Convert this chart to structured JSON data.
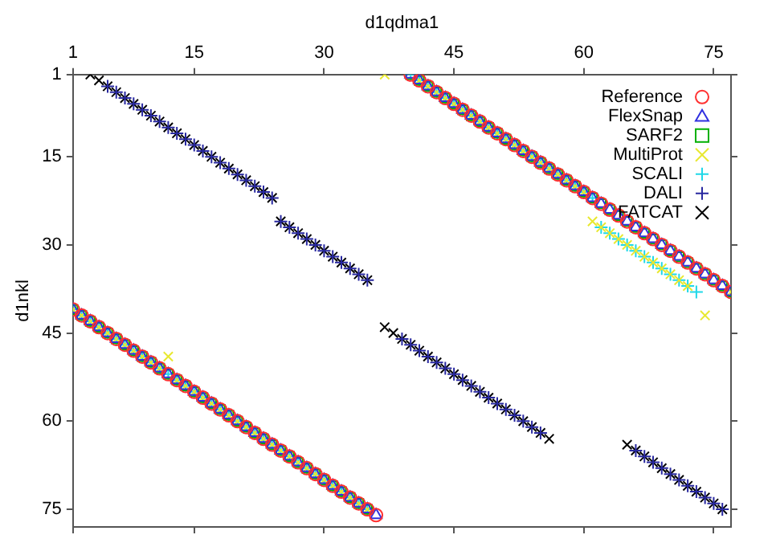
{
  "chart_data": {
    "type": "scatter",
    "xlabel": "d1qdma1",
    "ylabel": "d1nkl",
    "xlim": [
      1,
      77
    ],
    "ylim": [
      78,
      1
    ],
    "xticks": [
      1,
      15,
      30,
      45,
      60,
      75
    ],
    "yticks": [
      1,
      15,
      30,
      45,
      60,
      75
    ],
    "grid": false,
    "legend": "top right",
    "series": [
      {
        "name": "Reference",
        "color": "#ff3030",
        "marker": "circle",
        "x": [
          1,
          2,
          3,
          4,
          5,
          6,
          7,
          8,
          9,
          10,
          11,
          12,
          13,
          14,
          15,
          16,
          17,
          18,
          19,
          20,
          21,
          22,
          23,
          24,
          25,
          26,
          27,
          28,
          29,
          30,
          31,
          32,
          33,
          34,
          35,
          36,
          40,
          41,
          42,
          43,
          44,
          45,
          46,
          47,
          48,
          49,
          50,
          51,
          52,
          53,
          54,
          55,
          56,
          57,
          58,
          59,
          60,
          61,
          62,
          63,
          64,
          65,
          66,
          67,
          68,
          69,
          70,
          71,
          72,
          73,
          74,
          75,
          76,
          77
        ],
        "values": [
          41,
          42,
          43,
          44,
          45,
          46,
          47,
          48,
          49,
          50,
          51,
          52,
          53,
          54,
          55,
          56,
          57,
          58,
          59,
          60,
          61,
          62,
          63,
          64,
          65,
          66,
          67,
          68,
          69,
          70,
          71,
          72,
          73,
          74,
          75,
          76,
          1,
          2,
          3,
          4,
          5,
          6,
          7,
          8,
          9,
          10,
          11,
          12,
          13,
          14,
          15,
          16,
          17,
          18,
          19,
          20,
          21,
          22,
          23,
          24,
          25,
          26,
          27,
          28,
          29,
          30,
          31,
          32,
          33,
          34,
          35,
          36,
          37,
          38
        ]
      },
      {
        "name": "FlexSnap",
        "color": "#3030e0",
        "marker": "triangle",
        "x": [
          1,
          2,
          3,
          4,
          5,
          6,
          7,
          8,
          9,
          10,
          11,
          12,
          13,
          14,
          15,
          16,
          17,
          18,
          19,
          20,
          21,
          22,
          23,
          24,
          25,
          26,
          27,
          28,
          29,
          30,
          31,
          32,
          33,
          34,
          35,
          36,
          40,
          41,
          42,
          43,
          44,
          45,
          46,
          47,
          48,
          49,
          50,
          51,
          52,
          53,
          54,
          55,
          56,
          57,
          58,
          59,
          60,
          61,
          62,
          63,
          64,
          65,
          66,
          67,
          68,
          69,
          70,
          71,
          72,
          73,
          74,
          75,
          76,
          77
        ],
        "values": [
          41,
          42,
          43,
          44,
          45,
          46,
          47,
          48,
          49,
          50,
          51,
          52,
          53,
          54,
          55,
          56,
          57,
          58,
          59,
          60,
          61,
          62,
          63,
          64,
          65,
          66,
          67,
          68,
          69,
          70,
          71,
          72,
          73,
          74,
          75,
          76,
          1,
          2,
          3,
          4,
          5,
          6,
          7,
          8,
          9,
          10,
          11,
          12,
          13,
          14,
          15,
          16,
          17,
          18,
          19,
          20,
          21,
          22,
          23,
          24,
          25,
          26,
          27,
          28,
          29,
          30,
          31,
          32,
          33,
          34,
          35,
          36,
          37,
          38
        ]
      },
      {
        "name": "SARF2",
        "color": "#00b000",
        "marker": "square",
        "x": [
          1,
          2,
          3,
          4,
          5,
          6,
          7,
          8,
          9,
          10,
          11,
          12,
          13,
          14,
          15,
          16,
          17,
          18,
          19,
          20,
          21,
          22,
          23,
          24,
          25,
          26,
          27,
          28,
          29,
          30,
          31,
          32,
          33,
          34,
          35,
          40,
          41,
          42,
          43,
          44,
          45,
          46,
          47,
          48,
          49,
          50,
          51,
          52,
          53,
          54,
          55,
          56,
          57,
          58,
          59,
          60,
          61,
          62,
          63,
          64,
          65,
          66,
          67,
          68,
          69,
          70,
          71,
          72,
          73,
          74,
          75,
          76,
          77
        ],
        "values": [
          41,
          42,
          43,
          44,
          45,
          46,
          47,
          48,
          49,
          50,
          51,
          52,
          53,
          54,
          55,
          56,
          57,
          58,
          59,
          60,
          61,
          62,
          63,
          64,
          65,
          66,
          67,
          68,
          69,
          70,
          71,
          72,
          73,
          74,
          75,
          1,
          2,
          3,
          4,
          5,
          6,
          7,
          8,
          9,
          10,
          11,
          12,
          13,
          14,
          15,
          16,
          17,
          18,
          19,
          20,
          21,
          22,
          23,
          24,
          25,
          26,
          27,
          28,
          29,
          30,
          31,
          32,
          33,
          34,
          35,
          36,
          37,
          38
        ]
      },
      {
        "name": "MultiProt",
        "color": "#e8e830",
        "marker": "x",
        "x": [
          1,
          2,
          3,
          4,
          5,
          6,
          7,
          8,
          9,
          10,
          11,
          12,
          13,
          14,
          15,
          16,
          17,
          18,
          19,
          20,
          21,
          22,
          23,
          24,
          25,
          26,
          27,
          28,
          29,
          30,
          31,
          32,
          33,
          34,
          35,
          37,
          41,
          42,
          43,
          44,
          45,
          46,
          47,
          48,
          49,
          50,
          51,
          52,
          53,
          54,
          55,
          56,
          57,
          58,
          59,
          60,
          61,
          62,
          63,
          64,
          65,
          66,
          67,
          68,
          69,
          70,
          71,
          72,
          74,
          77
        ],
        "values": [
          41,
          42,
          43,
          44,
          45,
          46,
          47,
          48,
          49,
          50,
          51,
          49,
          53,
          54,
          55,
          56,
          57,
          58,
          59,
          60,
          61,
          62,
          63,
          64,
          65,
          66,
          67,
          68,
          69,
          70,
          71,
          72,
          73,
          74,
          75,
          1,
          2,
          3,
          4,
          5,
          6,
          7,
          8,
          9,
          10,
          11,
          12,
          13,
          14,
          15,
          16,
          17,
          18,
          19,
          20,
          21,
          26,
          27,
          28,
          29,
          30,
          31,
          32,
          33,
          34,
          35,
          36,
          37,
          42,
          38
        ]
      },
      {
        "name": "SCALI",
        "color": "#20d8e8",
        "marker": "cross",
        "x": [
          1,
          2,
          3,
          4,
          5,
          6,
          7,
          8,
          9,
          10,
          11,
          12,
          13,
          14,
          15,
          16,
          17,
          18,
          19,
          20,
          21,
          22,
          23,
          24,
          25,
          26,
          27,
          28,
          29,
          30,
          31,
          32,
          33,
          34,
          35,
          40,
          41,
          42,
          43,
          44,
          45,
          46,
          47,
          48,
          49,
          50,
          51,
          52,
          53,
          54,
          55,
          56,
          57,
          58,
          59,
          60,
          61,
          62,
          63,
          64,
          65,
          66,
          67,
          68,
          69,
          70,
          71,
          72,
          73
        ],
        "values": [
          41,
          42,
          43,
          44,
          45,
          46,
          47,
          48,
          49,
          50,
          51,
          52,
          53,
          54,
          55,
          56,
          57,
          58,
          59,
          60,
          61,
          62,
          63,
          64,
          65,
          66,
          67,
          68,
          69,
          70,
          71,
          72,
          73,
          74,
          75,
          1,
          2,
          3,
          4,
          5,
          6,
          7,
          8,
          9,
          10,
          11,
          12,
          13,
          14,
          15,
          16,
          17,
          18,
          19,
          20,
          21,
          22,
          27,
          28,
          29,
          30,
          31,
          32,
          33,
          34,
          35,
          36,
          37,
          38
        ]
      },
      {
        "name": "DALI",
        "color": "#2828a0",
        "marker": "cross",
        "x": [
          5,
          6,
          7,
          8,
          9,
          10,
          11,
          12,
          13,
          14,
          15,
          16,
          17,
          18,
          19,
          20,
          21,
          22,
          23,
          24,
          25,
          26,
          27,
          28,
          29,
          30,
          31,
          32,
          33,
          34,
          35,
          39,
          40,
          41,
          42,
          43,
          44,
          45,
          46,
          47,
          48,
          49,
          50,
          51,
          52,
          53,
          54,
          55,
          66,
          67,
          68,
          69,
          70,
          71,
          72,
          73,
          74,
          75,
          76
        ],
        "values": [
          3,
          4,
          5,
          6,
          7,
          8,
          9,
          10,
          11,
          12,
          13,
          14,
          15,
          16,
          17,
          18,
          19,
          20,
          21,
          22,
          26,
          27,
          28,
          29,
          30,
          31,
          32,
          33,
          34,
          35,
          36,
          46,
          47,
          48,
          49,
          50,
          51,
          52,
          53,
          54,
          55,
          56,
          57,
          58,
          59,
          60,
          61,
          62,
          65,
          66,
          67,
          68,
          69,
          70,
          71,
          72,
          73,
          74,
          75
        ]
      },
      {
        "name": "FATCAT",
        "color": "#000000",
        "marker": "x",
        "x": [
          3,
          4,
          5,
          6,
          7,
          8,
          9,
          10,
          11,
          12,
          13,
          14,
          15,
          16,
          17,
          18,
          19,
          20,
          21,
          22,
          23,
          24,
          25,
          26,
          27,
          28,
          29,
          30,
          31,
          32,
          33,
          34,
          35,
          37,
          38,
          39,
          40,
          41,
          42,
          43,
          44,
          45,
          46,
          47,
          48,
          49,
          50,
          51,
          52,
          53,
          54,
          55,
          56,
          65,
          66,
          67,
          68,
          69,
          70,
          71,
          72,
          73,
          74,
          75,
          76
        ],
        "values": [
          1,
          2,
          3,
          4,
          5,
          6,
          7,
          8,
          9,
          10,
          11,
          12,
          13,
          14,
          15,
          16,
          17,
          18,
          19,
          20,
          21,
          22,
          26,
          27,
          28,
          29,
          30,
          31,
          32,
          33,
          34,
          35,
          36,
          44,
          45,
          46,
          47,
          48,
          49,
          50,
          51,
          52,
          53,
          54,
          55,
          56,
          57,
          58,
          59,
          60,
          61,
          62,
          63,
          64,
          65,
          66,
          67,
          68,
          69,
          70,
          71,
          72,
          73,
          74,
          75
        ]
      }
    ]
  }
}
